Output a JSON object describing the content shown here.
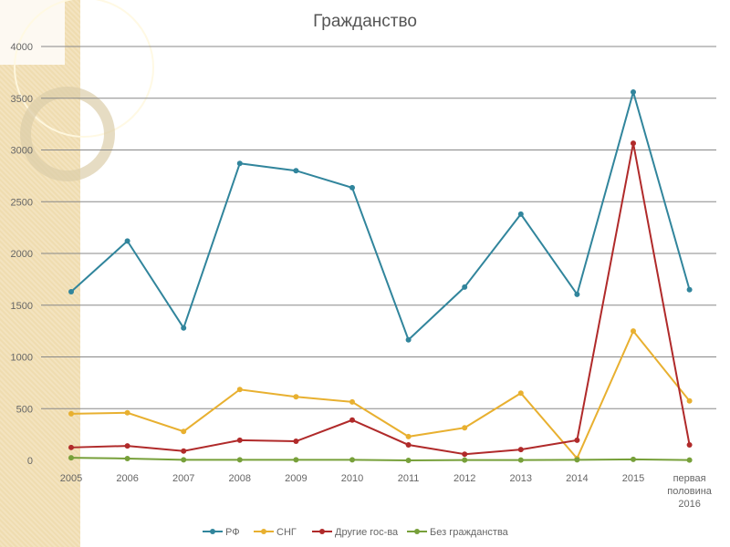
{
  "chart_data": {
    "type": "line",
    "title": "Гражданство",
    "categories": [
      "2005",
      "2006",
      "2007",
      "2008",
      "2009",
      "2010",
      "2011",
      "2012",
      "2013",
      "2014",
      "2015",
      "первая половина 2016"
    ],
    "ylim": [
      0,
      4000
    ],
    "yticks": [
      0,
      500,
      1000,
      1500,
      2000,
      2500,
      3000,
      3500,
      4000
    ],
    "grid": true,
    "legend": "bottom",
    "series": [
      {
        "name": "РФ",
        "color": "#31859c",
        "values": [
          1630,
          2120,
          1280,
          2870,
          2800,
          2635,
          1165,
          1675,
          2380,
          1605,
          3560,
          1650
        ]
      },
      {
        "name": "СНГ",
        "color": "#e8b030",
        "values": [
          450,
          460,
          280,
          685,
          615,
          565,
          230,
          315,
          650,
          20,
          1250,
          575
        ]
      },
      {
        "name": "Другие гос-ва",
        "color": "#b02a2a",
        "values": [
          125,
          140,
          90,
          195,
          185,
          390,
          150,
          60,
          105,
          195,
          3065,
          150
        ]
      },
      {
        "name": "Без гражданства",
        "color": "#77a03a",
        "values": [
          25,
          18,
          5,
          5,
          5,
          5,
          0,
          3,
          3,
          5,
          10,
          3
        ]
      }
    ]
  }
}
